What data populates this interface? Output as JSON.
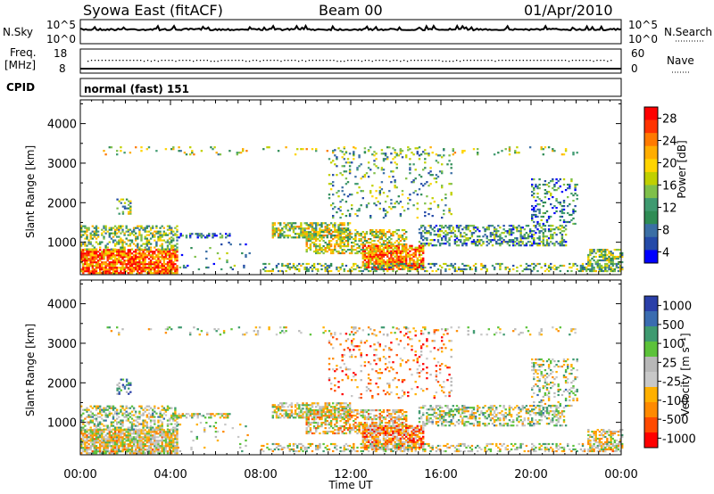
{
  "header": {
    "station": "Syowa East (fitACF)",
    "beam": "Beam 00",
    "date": "01/Apr/2010"
  },
  "top_panels": {
    "nsky_label": "N.Sky",
    "nsky_ticks": [
      "10^5",
      "10^0"
    ],
    "nsearch_label": "N.Search",
    "nsearch_right_ticks": [
      "10^5",
      "10^0"
    ],
    "freq_label_1": "Freq.",
    "freq_label_2": "[MHz]",
    "freq_ticks": [
      "18",
      "8"
    ],
    "nave_label": "Nave",
    "nave_right_ticks": [
      "60",
      "0"
    ],
    "cpid_label": "CPID",
    "cpid_value": "normal (fast) 151"
  },
  "chart_data": [
    {
      "type": "heatmap",
      "name": "power",
      "ylabel": "Slant Range [km]",
      "ylim": [
        180,
        4600
      ],
      "yticks": [
        1000,
        2000,
        3000,
        4000
      ],
      "xlabel": "Time UT",
      "xticks": [
        "00:00",
        "04:00",
        "08:00",
        "12:00",
        "16:00",
        "20:00",
        "00:00"
      ],
      "xlim_hours": [
        0,
        24
      ],
      "colorbar": {
        "label": "Power [dB]",
        "ticks": [
          "28",
          "24",
          "20",
          "16",
          "12",
          "8",
          "4"
        ],
        "colors": [
          "#ff0000",
          "#ff3300",
          "#ff7a00",
          "#ffad00",
          "#ffd400",
          "#c0d000",
          "#7fc04a",
          "#3f9a70",
          "#2f8c55",
          "#3b6fa5",
          "#244aa8",
          "#0000ff"
        ]
      }
    },
    {
      "type": "heatmap",
      "name": "velocity",
      "ylabel": "Slant Range [km]",
      "ylim": [
        180,
        4600
      ],
      "yticks": [
        1000,
        2000,
        3000,
        4000
      ],
      "xlabel": "Time UT",
      "xticks": [
        "00:00",
        "04:00",
        "08:00",
        "12:00",
        "16:00",
        "20:00",
        "00:00"
      ],
      "xlim_hours": [
        0,
        24
      ],
      "colorbar": {
        "label": "Velocity [m s⁻¹]",
        "ticks": [
          "1000",
          "500",
          "100",
          "25",
          "-25",
          "-100",
          "-500",
          "-1000"
        ],
        "colors": [
          "#2a3fa8",
          "#3a6cb0",
          "#3f9a70",
          "#5cc23a",
          "#b8b8b8",
          "#c8c8c8",
          "#ffb000",
          "#ff8a00",
          "#ff4a00",
          "#ff0000"
        ]
      }
    }
  ]
}
